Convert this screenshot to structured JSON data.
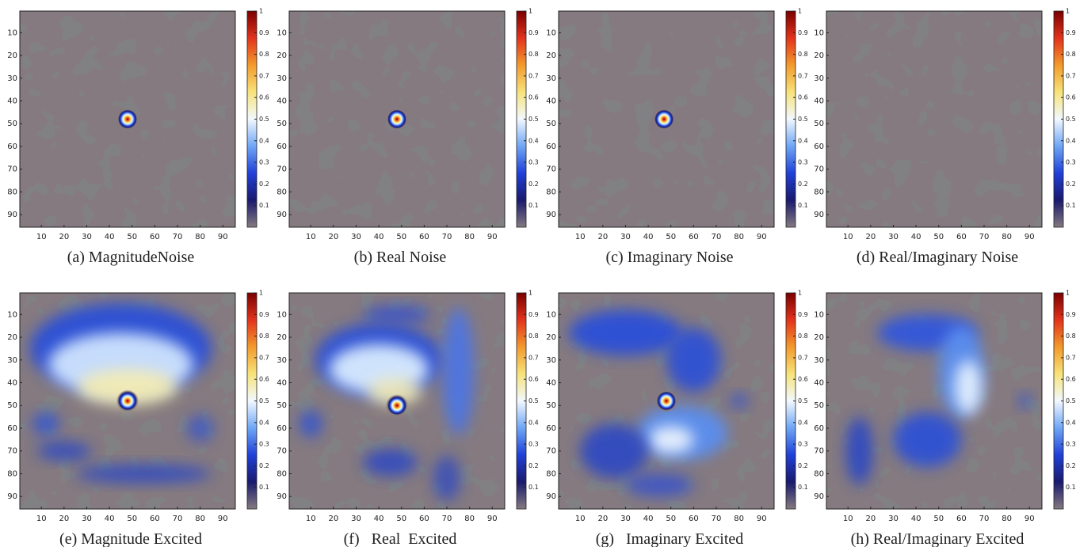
{
  "chart_data": [
    {
      "type": "heatmap",
      "caption": "(a) MagnitudeNoise",
      "xlim": [
        0.5,
        95.5
      ],
      "ylim": [
        0.5,
        95.5
      ],
      "xticks": [
        10,
        20,
        30,
        40,
        50,
        60,
        70,
        80,
        90
      ],
      "yticks": [
        10,
        20,
        30,
        40,
        50,
        60,
        70,
        80,
        90
      ],
      "clim": [
        0,
        1
      ],
      "cticks": [
        0.1,
        0.2,
        0.3,
        0.4,
        0.5,
        0.6,
        0.7,
        0.8,
        0.9,
        1
      ],
      "colormap": [
        "#857a80",
        "#1a1a6e",
        "#2040d8",
        "#6fa6f5",
        "#f2f8ff",
        "#f7e37a",
        "#f39a2c",
        "#e2331c",
        "#7a0000"
      ],
      "peak": {
        "x": 48,
        "y": 48,
        "value": 1
      }
    },
    {
      "type": "heatmap",
      "caption": "(b) Real Noise",
      "xlim": [
        0.5,
        95.5
      ],
      "ylim": [
        0.5,
        95.5
      ],
      "xticks": [
        10,
        20,
        30,
        40,
        50,
        60,
        70,
        80,
        90
      ],
      "yticks": [
        10,
        20,
        30,
        40,
        50,
        60,
        70,
        80,
        90
      ],
      "clim": [
        0,
        1
      ],
      "cticks": [
        0.1,
        0.2,
        0.3,
        0.4,
        0.5,
        0.6,
        0.7,
        0.8,
        0.9,
        1
      ],
      "colormap": [
        "#857a80",
        "#1a1a6e",
        "#2040d8",
        "#6fa6f5",
        "#f2f8ff",
        "#f7e37a",
        "#f39a2c",
        "#e2331c",
        "#7a0000"
      ],
      "peak": {
        "x": 48,
        "y": 48,
        "value": 1
      }
    },
    {
      "type": "heatmap",
      "caption": "(c) Imaginary Noise",
      "xlim": [
        0.5,
        95.5
      ],
      "ylim": [
        0.5,
        95.5
      ],
      "xticks": [
        10,
        20,
        30,
        40,
        50,
        60,
        70,
        80,
        90
      ],
      "yticks": [
        10,
        20,
        30,
        40,
        50,
        60,
        70,
        80,
        90
      ],
      "clim": [
        0,
        1
      ],
      "cticks": [
        0.1,
        0.2,
        0.3,
        0.4,
        0.5,
        0.6,
        0.7,
        0.8,
        0.9,
        1
      ],
      "colormap": [
        "#857a80",
        "#1a1a6e",
        "#2040d8",
        "#6fa6f5",
        "#f2f8ff",
        "#f7e37a",
        "#f39a2c",
        "#e2331c",
        "#7a0000"
      ],
      "peak": {
        "x": 47,
        "y": 48,
        "value": 1
      }
    },
    {
      "type": "heatmap",
      "caption": "(d) Real/Imaginary Noise",
      "xlim": [
        0.5,
        95.5
      ],
      "ylim": [
        0.5,
        95.5
      ],
      "xticks": [
        10,
        20,
        30,
        40,
        50,
        60,
        70,
        80,
        90
      ],
      "yticks": [
        10,
        20,
        30,
        40,
        50,
        60,
        70,
        80,
        90
      ],
      "clim": [
        0,
        1
      ],
      "cticks": [
        0.1,
        0.2,
        0.3,
        0.4,
        0.5,
        0.6,
        0.7,
        0.8,
        0.9,
        1
      ],
      "colormap": [
        "#857a80",
        "#1a1a6e",
        "#2040d8",
        "#6fa6f5",
        "#f2f8ff",
        "#f7e37a",
        "#f39a2c",
        "#e2331c",
        "#7a0000"
      ]
    },
    {
      "type": "heatmap",
      "caption": "(e) Magnitude Excited",
      "xlim": [
        0.5,
        95.5
      ],
      "ylim": [
        0.5,
        95.5
      ],
      "xticks": [
        10,
        20,
        30,
        40,
        50,
        60,
        70,
        80,
        90
      ],
      "yticks": [
        10,
        20,
        30,
        40,
        50,
        60,
        70,
        80,
        90
      ],
      "clim": [
        0,
        1
      ],
      "cticks": [
        0.1,
        0.2,
        0.3,
        0.4,
        0.5,
        0.6,
        0.7,
        0.8,
        0.9,
        1
      ],
      "colormap": [
        "#857a80",
        "#1a1a6e",
        "#2040d8",
        "#6fa6f5",
        "#f2f8ff",
        "#f7e37a",
        "#f39a2c",
        "#e2331c",
        "#7a0000"
      ],
      "peak": {
        "x": 48,
        "y": 48,
        "value": 1
      }
    },
    {
      "type": "heatmap",
      "caption": "(f)   Real  Excited",
      "xlim": [
        0.5,
        95.5
      ],
      "ylim": [
        0.5,
        95.5
      ],
      "xticks": [
        10,
        20,
        30,
        40,
        50,
        60,
        70,
        80,
        90
      ],
      "yticks": [
        10,
        20,
        30,
        40,
        50,
        60,
        70,
        80,
        90
      ],
      "clim": [
        0,
        1
      ],
      "cticks": [
        0.1,
        0.2,
        0.3,
        0.4,
        0.5,
        0.6,
        0.7,
        0.8,
        0.9,
        1
      ],
      "colormap": [
        "#857a80",
        "#1a1a6e",
        "#2040d8",
        "#6fa6f5",
        "#f2f8ff",
        "#f7e37a",
        "#f39a2c",
        "#e2331c",
        "#7a0000"
      ],
      "peak": {
        "x": 48,
        "y": 50,
        "value": 1
      }
    },
    {
      "type": "heatmap",
      "caption": "(g)   Imaginary Excited",
      "xlim": [
        0.5,
        95.5
      ],
      "ylim": [
        0.5,
        95.5
      ],
      "xticks": [
        10,
        20,
        30,
        40,
        50,
        60,
        70,
        80,
        90
      ],
      "yticks": [
        10,
        20,
        30,
        40,
        50,
        60,
        70,
        80,
        90
      ],
      "clim": [
        0,
        1
      ],
      "cticks": [
        0.1,
        0.2,
        0.3,
        0.4,
        0.5,
        0.6,
        0.7,
        0.8,
        0.9,
        1
      ],
      "colormap": [
        "#857a80",
        "#1a1a6e",
        "#2040d8",
        "#6fa6f5",
        "#f2f8ff",
        "#f7e37a",
        "#f39a2c",
        "#e2331c",
        "#7a0000"
      ],
      "peak": {
        "x": 48,
        "y": 48,
        "value": 1
      }
    },
    {
      "type": "heatmap",
      "caption": "(h) Real/Imaginary Excited",
      "xlim": [
        0.5,
        95.5
      ],
      "ylim": [
        0.5,
        95.5
      ],
      "xticks": [
        10,
        20,
        30,
        40,
        50,
        60,
        70,
        80,
        90
      ],
      "yticks": [
        10,
        20,
        30,
        40,
        50,
        60,
        70,
        80,
        90
      ],
      "clim": [
        0,
        1
      ],
      "cticks": [
        0.1,
        0.2,
        0.3,
        0.4,
        0.5,
        0.6,
        0.7,
        0.8,
        0.9,
        1
      ],
      "colormap": [
        "#857a80",
        "#1a1a6e",
        "#2040d8",
        "#6fa6f5",
        "#f2f8ff",
        "#f7e37a",
        "#f39a2c",
        "#e2331c",
        "#7a0000"
      ]
    }
  ]
}
